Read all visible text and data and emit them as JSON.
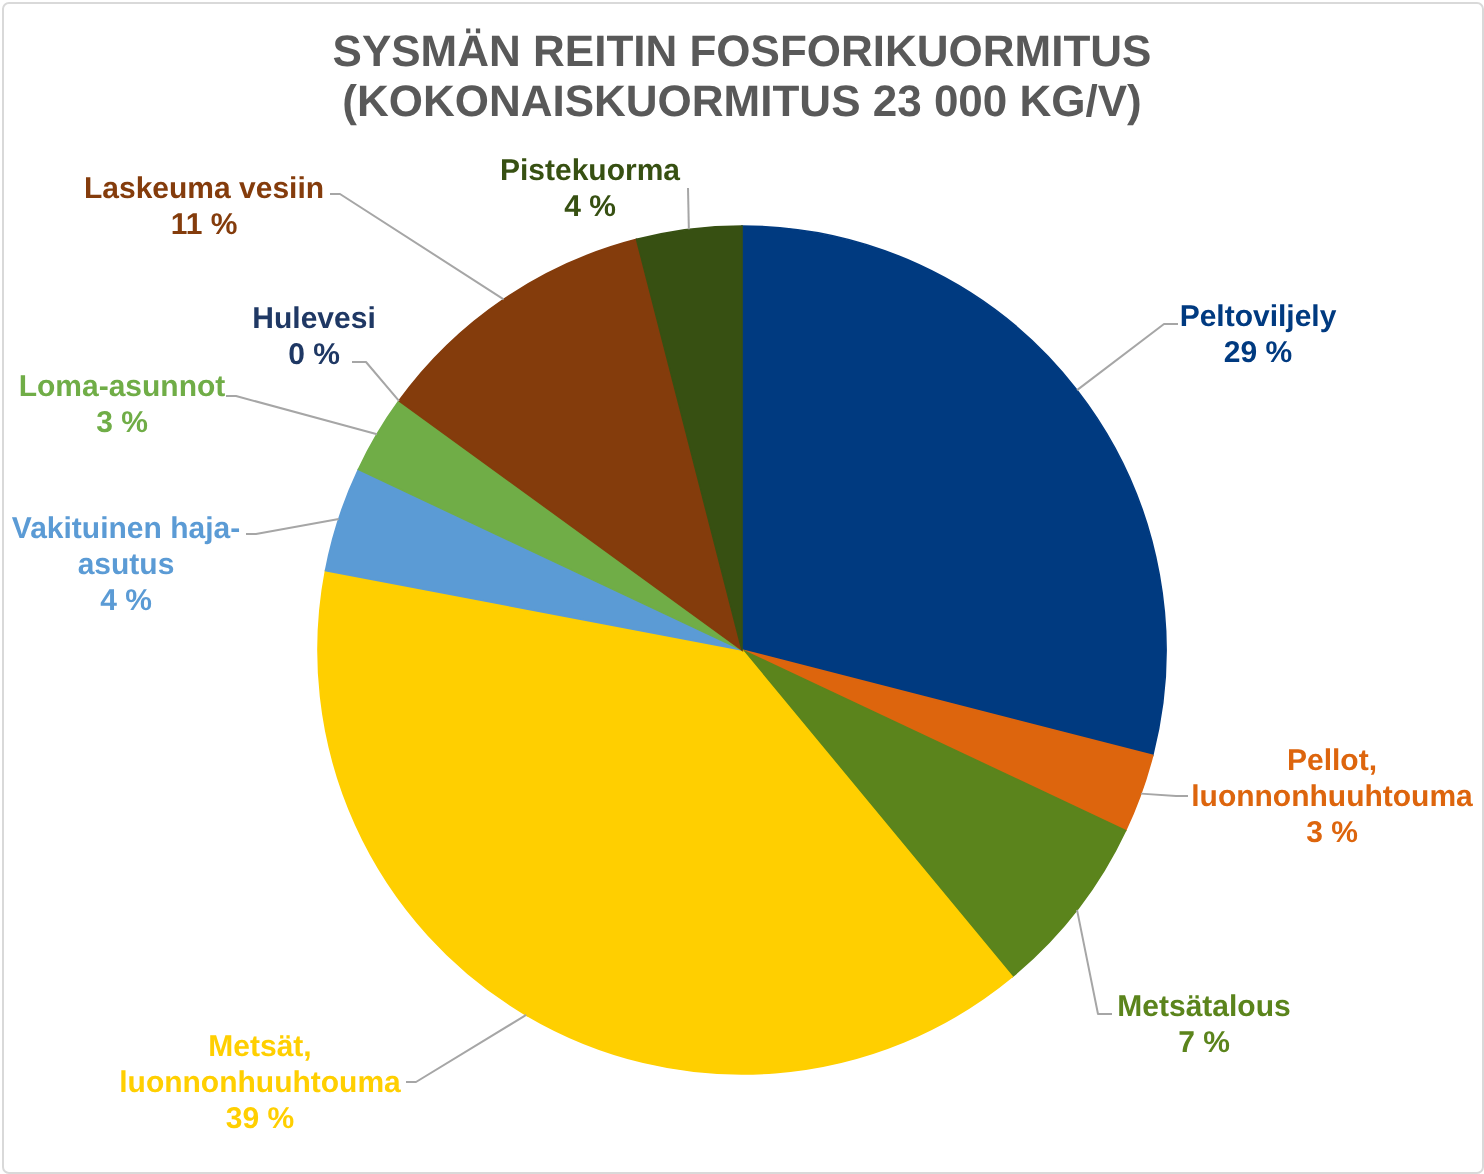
{
  "chart_data": {
    "type": "pie",
    "title": "SYSMÄN REITIN FOSFORIKUORMITUS (KOKONAISKUORMITUS 23 000 KG/V)",
    "categories": [
      "Peltoviljely",
      "Pellot, luonnonhuuhtouma",
      "Metsätalous",
      "Metsät, luonnonhuuhtouma",
      "Vakituinen haja-asutus",
      "Loma-asunnot",
      "Hulevesi",
      "Laskeuma vesiin",
      "Pistekuorma"
    ],
    "values": [
      29,
      3,
      7,
      39,
      4,
      3,
      0,
      11,
      4
    ],
    "value_labels": [
      "29 %",
      "3 %",
      "7 %",
      "39 %",
      "4 %",
      "3 %",
      "0 %",
      "11 %",
      "4 %"
    ],
    "colors": [
      "#003a80",
      "#dd650d",
      "#5b841c",
      "#ffcf00",
      "#5b9bd5",
      "#70ad47",
      "#1f3864",
      "#843c0c",
      "#375012"
    ]
  }
}
